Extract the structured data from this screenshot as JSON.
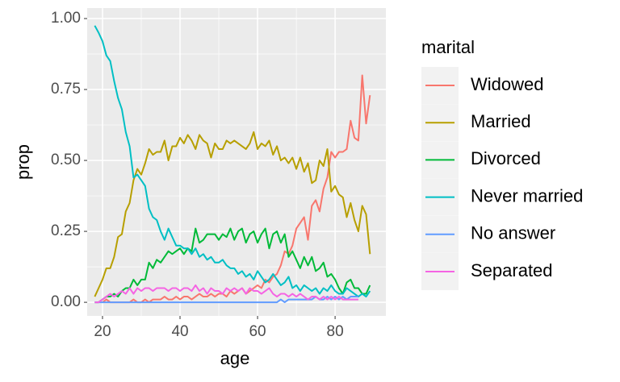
{
  "chart_data": {
    "type": "line",
    "x_label": "age",
    "y_label": "prop",
    "legend_title": "marital",
    "x": [
      18,
      19,
      20,
      21,
      22,
      23,
      24,
      25,
      26,
      27,
      28,
      29,
      30,
      31,
      32,
      33,
      34,
      35,
      36,
      37,
      38,
      39,
      40,
      41,
      42,
      43,
      44,
      45,
      46,
      47,
      48,
      49,
      50,
      51,
      52,
      53,
      54,
      55,
      56,
      57,
      58,
      59,
      60,
      61,
      62,
      63,
      64,
      65,
      66,
      67,
      68,
      69,
      70,
      71,
      72,
      73,
      74,
      75,
      76,
      77,
      78,
      79,
      80,
      81,
      82,
      83,
      84,
      85,
      86,
      87,
      88,
      89
    ],
    "series": [
      {
        "name": "Widowed",
        "color": "#F8766D",
        "values": [
          null,
          null,
          0,
          0.01,
          0,
          0,
          0,
          0,
          0,
          0,
          0.01,
          0,
          0,
          0.01,
          0,
          0.01,
          0.01,
          0.01,
          0.02,
          0.01,
          0.01,
          0.02,
          0.01,
          0.02,
          0.02,
          0.01,
          0.02,
          0.03,
          0.02,
          0.02,
          0.03,
          0.02,
          0.03,
          0.03,
          0.02,
          0.04,
          0.03,
          0.04,
          0.05,
          0.03,
          0.04,
          0.05,
          0.06,
          0.05,
          0.08,
          0.07,
          0.09,
          0.1,
          0.13,
          0.18,
          0.17,
          0.2,
          0.26,
          0.28,
          0.3,
          0.22,
          0.34,
          0.36,
          0.32,
          0.4,
          0.44,
          0.53,
          0.51,
          0.53,
          0.53,
          0.54,
          0.64,
          0.58,
          0.57,
          0.8,
          0.63,
          0.73
        ]
      },
      {
        "name": "Married",
        "color": "#B79F00",
        "values": [
          0.02,
          0.05,
          0.08,
          0.12,
          0.12,
          0.16,
          0.23,
          0.24,
          0.32,
          0.35,
          0.43,
          0.47,
          0.45,
          0.49,
          0.54,
          0.52,
          0.53,
          0.53,
          0.57,
          0.5,
          0.55,
          0.55,
          0.58,
          0.56,
          0.59,
          0.57,
          0.54,
          0.59,
          0.57,
          0.56,
          0.51,
          0.56,
          0.54,
          0.54,
          0.57,
          0.56,
          0.57,
          0.56,
          0.55,
          0.54,
          0.56,
          0.6,
          0.54,
          0.56,
          0.55,
          0.57,
          0.52,
          0.55,
          0.5,
          0.51,
          0.49,
          0.51,
          0.47,
          0.51,
          0.46,
          0.49,
          0.42,
          0.43,
          0.5,
          0.48,
          0.54,
          0.39,
          0.41,
          0.38,
          0.37,
          0.3,
          0.35,
          0.29,
          0.25,
          0.34,
          0.31,
          0.17
        ]
      },
      {
        "name": "Divorced",
        "color": "#00BA38",
        "values": [
          0,
          0,
          0.01,
          0.02,
          0.02,
          0.03,
          0.02,
          0.04,
          0.05,
          0.05,
          0.08,
          0.06,
          0.08,
          0.08,
          0.14,
          0.12,
          0.15,
          0.14,
          0.16,
          0.18,
          0.17,
          0.18,
          0.19,
          0.17,
          0.19,
          0.18,
          0.26,
          0.21,
          0.22,
          0.24,
          0.24,
          0.24,
          0.22,
          0.24,
          0.23,
          0.26,
          0.22,
          0.25,
          0.26,
          0.21,
          0.24,
          0.25,
          0.21,
          0.24,
          0.26,
          0.19,
          0.24,
          0.25,
          0.21,
          0.24,
          0.16,
          0.18,
          0.15,
          0.12,
          0.16,
          0.13,
          0.16,
          0.11,
          0.12,
          0.14,
          0.09,
          0.1,
          0.08,
          0.05,
          0.03,
          0.07,
          0.08,
          0.05,
          0.05,
          0.03,
          0.03,
          0.06
        ]
      },
      {
        "name": "Never married",
        "color": "#00BFC4",
        "values": [
          0.975,
          0.95,
          0.92,
          0.87,
          0.85,
          0.78,
          0.72,
          0.68,
          0.6,
          0.55,
          0.44,
          0.45,
          0.43,
          0.41,
          0.33,
          0.3,
          0.29,
          0.25,
          0.22,
          0.26,
          0.23,
          0.2,
          0.2,
          0.19,
          0.19,
          0.17,
          0.19,
          0.16,
          0.17,
          0.15,
          0.16,
          0.14,
          0.14,
          0.15,
          0.13,
          0.12,
          0.12,
          0.1,
          0.11,
          0.09,
          0.1,
          0.08,
          0.11,
          0.09,
          0.07,
          0.08,
          0.1,
          0.08,
          0.06,
          0.07,
          0.09,
          0.05,
          0.06,
          0.04,
          0.06,
          0.05,
          0.04,
          0.05,
          0.03,
          0.05,
          0.04,
          0.06,
          0.04,
          0.03,
          0.03,
          0.05,
          0.04,
          0.03,
          0.02,
          0.03,
          0.02,
          0.04
        ]
      },
      {
        "name": "No answer",
        "color": "#619CFF",
        "values": [
          0,
          0,
          0,
          0,
          0,
          0,
          0,
          0,
          0,
          0,
          0,
          0,
          0,
          0,
          0,
          0,
          0,
          0,
          0,
          0,
          0,
          0,
          0,
          0,
          0,
          0,
          0,
          0,
          0,
          0,
          0,
          0,
          0,
          0,
          0,
          0,
          0,
          0,
          0,
          0,
          0,
          0,
          0,
          0,
          0,
          0,
          0,
          0,
          0.01,
          0,
          0.01,
          0.01,
          0.01,
          0.01,
          0.01,
          0.01,
          0.01,
          0.02,
          0.01,
          0.01,
          0.02,
          0.01,
          0.02,
          0.01,
          0.02,
          0.01,
          0.02,
          0.02,
          0.02,
          null,
          null,
          null
        ]
      },
      {
        "name": "Separated",
        "color": "#F564E3",
        "values": [
          0,
          0,
          0.01,
          0.02,
          0.03,
          0.02,
          0.03,
          0.04,
          0.03,
          0.05,
          0.03,
          0.05,
          0.04,
          0.05,
          0.05,
          0.04,
          0.05,
          0.05,
          0.05,
          0.04,
          0.05,
          0.05,
          0.04,
          0.05,
          0.05,
          0.04,
          0.06,
          0.04,
          0.05,
          0.03,
          0.05,
          0.04,
          0.04,
          0.03,
          0.05,
          0.04,
          0.05,
          0.04,
          0.05,
          0.03,
          0.05,
          0.04,
          0.04,
          0.03,
          0.04,
          0.05,
          0.03,
          0.02,
          0.03,
          0.03,
          0.02,
          0.03,
          0.02,
          0.03,
          0.02,
          0.01,
          0.02,
          0.02,
          0.01,
          0.02,
          0.01,
          0.02,
          0.01,
          0.02,
          0.01,
          0.01,
          0.01,
          0.01,
          0.01,
          null,
          null,
          null
        ]
      }
    ],
    "xlim": [
      16.05,
      93.1
    ],
    "ylim": [
      -0.048,
      1.037
    ],
    "xticks": [
      20,
      40,
      60,
      80
    ],
    "yticks": [
      {
        "value": 0,
        "label": "0.00"
      },
      {
        "value": 0.25,
        "label": "0.25"
      },
      {
        "value": 0.5,
        "label": "0.50"
      },
      {
        "value": 0.75,
        "label": "0.75"
      },
      {
        "value": 1,
        "label": "1.00"
      }
    ],
    "grid": true,
    "legend_position": "right"
  }
}
